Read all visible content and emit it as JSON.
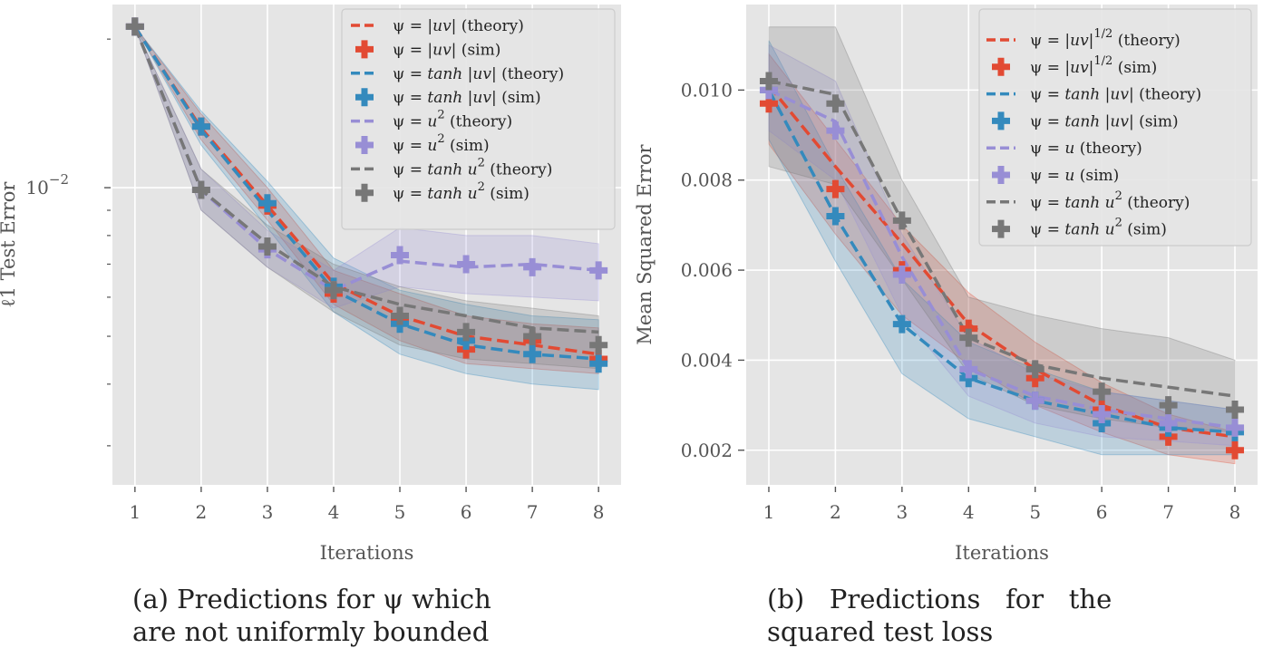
{
  "chart_data": [
    {
      "type": "line",
      "panel": "a",
      "yscale": "log",
      "title": "",
      "xlabel": "Iterations",
      "ylabel": "ℓ1 Test Error",
      "x": [
        1,
        2,
        3,
        4,
        5,
        6,
        7,
        8
      ],
      "xticks": [
        "1",
        "2",
        "3",
        "4",
        "5",
        "6",
        "7",
        "8"
      ],
      "xlim": [
        0.66,
        8.34
      ],
      "ylim": [
        0.0025,
        0.0235
      ],
      "yticks": [
        {
          "value": 0.01,
          "label": "10",
          "exp": "−2"
        }
      ],
      "legend_position": "upper right",
      "series": [
        {
          "name": "ψ = |uv| (theory)",
          "kind": "theory",
          "color": "#E24A33",
          "values": [
            0.0212,
            0.0132,
            0.0092,
            0.0064,
            0.0055,
            0.005,
            0.0048,
            0.0046
          ]
        },
        {
          "name": "ψ = |uv| (sim)",
          "kind": "sim",
          "color": "#E24A33",
          "values": [
            0.0212,
            0.0133,
            0.0092,
            0.0061,
            0.0054,
            0.0047,
            0.0049,
            0.0045
          ],
          "band_lower": [
            0.0212,
            0.0125,
            0.0086,
            0.0058,
            0.0049,
            0.0044,
            0.0043,
            0.0042
          ],
          "band_upper": [
            0.0212,
            0.0141,
            0.01,
            0.0068,
            0.0061,
            0.0055,
            0.0053,
            0.0052
          ]
        },
        {
          "name": "ψ = tanh |uv| (theory)",
          "kind": "theory",
          "color": "#348ABD",
          "values": [
            0.0212,
            0.0131,
            0.009,
            0.0062,
            0.0053,
            0.0048,
            0.0046,
            0.0045
          ]
        },
        {
          "name": "ψ = tanh |uv| (sim)",
          "kind": "sim",
          "color": "#348ABD",
          "values": [
            0.0212,
            0.0133,
            0.0093,
            0.0063,
            0.0053,
            0.0049,
            0.0046,
            0.0044
          ],
          "band_lower": [
            0.0212,
            0.0122,
            0.0083,
            0.0056,
            0.0046,
            0.0042,
            0.004,
            0.0039
          ],
          "band_upper": [
            0.0212,
            0.0143,
            0.0103,
            0.0072,
            0.0062,
            0.0058,
            0.0055,
            0.0054
          ]
        },
        {
          "name": "ψ = u² (theory)",
          "kind": "theory",
          "color": "#988ED5",
          "values": [
            0.0212,
            0.0099,
            0.0075,
            0.0062,
            0.0071,
            0.0069,
            0.007,
            0.0068
          ]
        },
        {
          "name": "ψ = u² (sim)",
          "kind": "sim",
          "color": "#988ED5",
          "values": [
            0.0212,
            0.0099,
            0.0075,
            0.0062,
            0.0073,
            0.007,
            0.0069,
            0.0068
          ],
          "band_lower": [
            0.0212,
            0.009,
            0.0069,
            0.0057,
            0.0063,
            0.0061,
            0.006,
            0.0059
          ],
          "band_upper": [
            0.0212,
            0.0109,
            0.0082,
            0.0068,
            0.0083,
            0.008,
            0.008,
            0.0077
          ]
        },
        {
          "name": "ψ = tanh u² (theory)",
          "kind": "theory",
          "color": "#777777",
          "values": [
            0.0212,
            0.0099,
            0.0077,
            0.0063,
            0.0058,
            0.0055,
            0.0052,
            0.0051
          ]
        },
        {
          "name": "ψ = tanh u² (sim)",
          "kind": "sim",
          "color": "#777777",
          "values": [
            0.0212,
            0.0099,
            0.0076,
            0.0062,
            0.0055,
            0.0051,
            0.005,
            0.0048
          ],
          "band_lower": [
            0.0212,
            0.009,
            0.0069,
            0.0056,
            0.0048,
            0.0045,
            0.0044,
            0.0043
          ],
          "band_upper": [
            0.0212,
            0.0109,
            0.0084,
            0.007,
            0.0063,
            0.0059,
            0.0057,
            0.0055
          ]
        }
      ],
      "legend": [
        {
          "pre": "ψ = ",
          "math": "|uv|",
          "post": " (theory)",
          "sup": "",
          "marker": "dash",
          "color": "#E24A33"
        },
        {
          "pre": "ψ = ",
          "math": "|uv|",
          "post": " (sim)",
          "sup": "",
          "marker": "plus",
          "color": "#E24A33"
        },
        {
          "pre": "ψ = ",
          "math": "tanh |uv|",
          "post": " (theory)",
          "sup": "",
          "marker": "dash",
          "color": "#348ABD"
        },
        {
          "pre": "ψ = ",
          "math": "tanh |uv|",
          "post": " (sim)",
          "sup": "",
          "marker": "plus",
          "color": "#348ABD"
        },
        {
          "pre": "ψ = ",
          "math": "u",
          "post": " (theory)",
          "sup": "2",
          "marker": "dash",
          "color": "#988ED5"
        },
        {
          "pre": "ψ = ",
          "math": "u",
          "post": " (sim)",
          "sup": "2",
          "marker": "plus",
          "color": "#988ED5"
        },
        {
          "pre": "ψ = ",
          "math": "tanh u",
          "post": " (theory)",
          "sup": "2",
          "marker": "dash",
          "color": "#777777"
        },
        {
          "pre": "ψ = ",
          "math": "tanh u",
          "post": " (sim)",
          "sup": "2",
          "marker": "plus",
          "color": "#777777"
        }
      ]
    },
    {
      "type": "line",
      "panel": "b",
      "yscale": "linear",
      "title": "",
      "xlabel": "Iterations",
      "ylabel": "Mean Squared Error",
      "x": [
        1,
        2,
        3,
        4,
        5,
        6,
        7,
        8
      ],
      "xticks": [
        "1",
        "2",
        "3",
        "4",
        "5",
        "6",
        "7",
        "8"
      ],
      "xlim": [
        0.66,
        8.34
      ],
      "ylim": [
        0.00123,
        0.0119
      ],
      "yticks": [
        {
          "value": 0.002,
          "label": "0.002"
        },
        {
          "value": 0.004,
          "label": "0.004"
        },
        {
          "value": 0.006,
          "label": "0.006"
        },
        {
          "value": 0.008,
          "label": "0.008"
        },
        {
          "value": 0.01,
          "label": "0.010"
        }
      ],
      "legend_position": "upper right",
      "series": [
        {
          "name": "ψ = |uv|^1/2 (theory)",
          "kind": "theory",
          "color": "#E24A33",
          "values": [
            0.0101,
            0.0083,
            0.0066,
            0.0048,
            0.0038,
            0.003,
            0.0025,
            0.0023
          ]
        },
        {
          "name": "ψ = |uv|^1/2 (sim)",
          "kind": "sim",
          "color": "#E24A33",
          "values": [
            0.0097,
            0.0078,
            0.006,
            0.0047,
            0.0036,
            0.0029,
            0.0023,
            0.002
          ],
          "band_lower": [
            0.0088,
            0.0068,
            0.005,
            0.0039,
            0.003,
            0.0024,
            0.0019,
            0.0017
          ],
          "band_upper": [
            0.0108,
            0.0089,
            0.007,
            0.0055,
            0.0044,
            0.0035,
            0.0028,
            0.0024
          ]
        },
        {
          "name": "ψ = tanh |uv| (theory)",
          "kind": "theory",
          "color": "#348ABD",
          "values": [
            0.01,
            0.0072,
            0.0048,
            0.0036,
            0.0031,
            0.0028,
            0.0025,
            0.0024
          ]
        },
        {
          "name": "ψ = tanh |uv| (sim)",
          "kind": "sim",
          "color": "#348ABD",
          "values": [
            0.01,
            0.0072,
            0.0048,
            0.0036,
            0.0031,
            0.0026,
            0.0025,
            0.0024
          ],
          "band_lower": [
            0.0089,
            0.0062,
            0.0037,
            0.0027,
            0.0023,
            0.0019,
            0.0019,
            0.0019
          ],
          "band_upper": [
            0.0111,
            0.0083,
            0.0058,
            0.0044,
            0.0038,
            0.0033,
            0.0031,
            0.0029
          ]
        },
        {
          "name": "ψ = u (theory)",
          "kind": "theory",
          "color": "#988ED5",
          "values": [
            0.01,
            0.0093,
            0.0063,
            0.0038,
            0.0032,
            0.0029,
            0.0027,
            0.0025
          ]
        },
        {
          "name": "ψ = u (sim)",
          "kind": "sim",
          "color": "#988ED5",
          "values": [
            0.01,
            0.0091,
            0.0059,
            0.0038,
            0.0031,
            0.0028,
            0.0026,
            0.0025
          ],
          "band_lower": [
            0.0091,
            0.008,
            0.005,
            0.0032,
            0.0026,
            0.0023,
            0.0022,
            0.0021
          ],
          "band_upper": [
            0.011,
            0.0102,
            0.0068,
            0.0045,
            0.0037,
            0.0033,
            0.0031,
            0.0029
          ]
        },
        {
          "name": "ψ = tanh u² (theory)",
          "kind": "theory",
          "color": "#777777",
          "values": [
            0.0102,
            0.0099,
            0.0071,
            0.0045,
            0.0039,
            0.0036,
            0.0034,
            0.0032
          ]
        },
        {
          "name": "ψ = tanh u² (sim)",
          "kind": "sim",
          "color": "#777777",
          "values": [
            0.0102,
            0.0097,
            0.0071,
            0.0045,
            0.0038,
            0.0033,
            0.003,
            0.0029
          ],
          "band_lower": [
            0.0083,
            0.0079,
            0.0058,
            0.0037,
            0.003,
            0.0027,
            0.0025,
            0.0024
          ],
          "band_upper": [
            0.0114,
            0.0114,
            0.008,
            0.0054,
            0.005,
            0.0047,
            0.0045,
            0.004
          ]
        }
      ],
      "legend": [
        {
          "pre": "ψ = ",
          "math": "|uv|",
          "post": "  (theory)",
          "sup": "1/2",
          "marker": "dash",
          "color": "#E24A33"
        },
        {
          "pre": "ψ = ",
          "math": "|uv|",
          "post": "  (sim)",
          "sup": "1/2",
          "marker": "plus",
          "color": "#E24A33"
        },
        {
          "pre": "ψ = ",
          "math": "tanh |uv|",
          "post": " (theory)",
          "sup": "",
          "marker": "dash",
          "color": "#348ABD"
        },
        {
          "pre": "ψ = ",
          "math": "tanh |uv|",
          "post": " (sim)",
          "sup": "",
          "marker": "plus",
          "color": "#348ABD"
        },
        {
          "pre": "ψ = ",
          "math": "u",
          "post": " (theory)",
          "sup": "",
          "marker": "dash",
          "color": "#988ED5"
        },
        {
          "pre": "ψ = ",
          "math": "u",
          "post": " (sim)",
          "sup": "",
          "marker": "plus",
          "color": "#988ED5"
        },
        {
          "pre": "ψ = ",
          "math": "tanh u",
          "post": " (theory)",
          "sup": "2",
          "marker": "dash",
          "color": "#777777"
        },
        {
          "pre": "ψ = ",
          "math": "tanh u",
          "post": " (sim)",
          "sup": "2",
          "marker": "plus",
          "color": "#777777"
        }
      ]
    }
  ],
  "captions": {
    "a": {
      "line1": "(a) Predictions for ψ which",
      "line2": "are not uniformly bounded"
    },
    "b": {
      "line1": "(b)   Predictions   for   the",
      "line2": "squared test loss"
    }
  }
}
